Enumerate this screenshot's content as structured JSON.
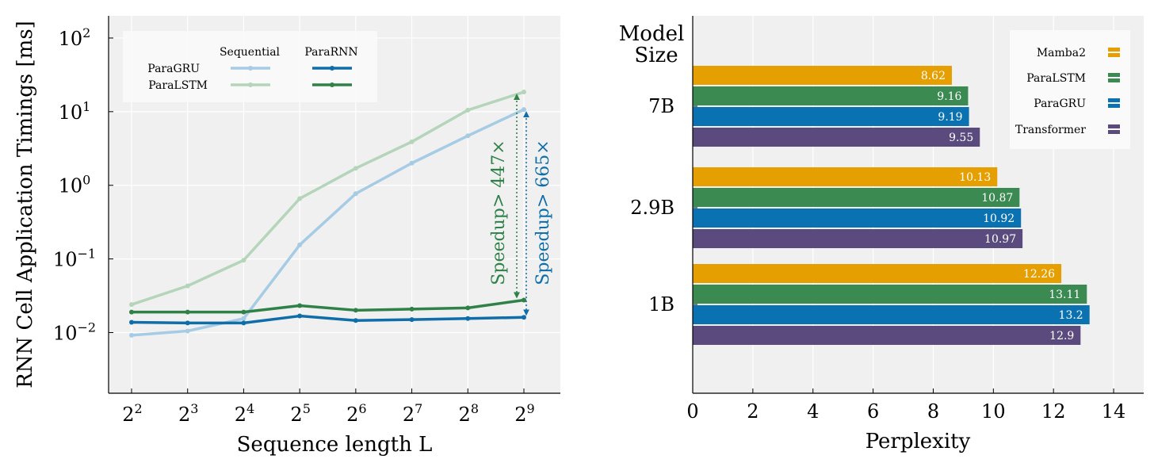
{
  "chart_data": [
    {
      "type": "line",
      "ylabel": "RNN Cell Application Timings [ms]",
      "xlabel": "Sequence length L",
      "x_ticks": [
        "2^2",
        "2^3",
        "2^4",
        "2^5",
        "2^6",
        "2^7",
        "2^8",
        "2^9"
      ],
      "x": [
        2,
        3,
        4,
        5,
        6,
        7,
        8,
        9
      ],
      "y_scale": "log",
      "ylim": [
        0.0015,
        200
      ],
      "y_ticks": [
        "10^2",
        "10^1",
        "10^0",
        "10^-1",
        "10^-2"
      ],
      "y_tick_values": [
        100,
        10,
        1,
        0.1,
        0.01
      ],
      "legend": {
        "position": "top-left",
        "column_headers": [
          "Sequential",
          "ParaRNN"
        ],
        "row_labels": [
          "ParaGRU",
          "ParaLSTM"
        ]
      },
      "series": [
        {
          "name": "ParaGRU Sequential",
          "color": "#a6cbe4",
          "values": [
            0.0092,
            0.0105,
            0.0155,
            0.155,
            0.77,
            2.0,
            4.7,
            10.7
          ]
        },
        {
          "name": "ParaLSTM Sequential",
          "color": "#b4d5b9",
          "values": [
            0.024,
            0.043,
            0.096,
            0.66,
            1.7,
            3.9,
            10.5,
            18.5
          ]
        },
        {
          "name": "ParaGRU ParaRNN",
          "color": "#0f6ea9",
          "values": [
            0.0138,
            0.0135,
            0.0135,
            0.0168,
            0.0146,
            0.015,
            0.0155,
            0.0161
          ]
        },
        {
          "name": "ParaLSTM ParaRNN",
          "color": "#2f8148",
          "values": [
            0.019,
            0.019,
            0.019,
            0.0232,
            0.0201,
            0.0208,
            0.0216,
            0.0276
          ]
        }
      ],
      "annotations": [
        {
          "text": "Speedup> 447×",
          "color": "#2f8148"
        },
        {
          "text": "Speedup> 665×",
          "color": "#0f6ea9"
        }
      ]
    },
    {
      "type": "bar",
      "orientation": "horizontal",
      "xlabel": "Perplexity",
      "ylabel": "Model Size",
      "xlim": [
        0,
        15
      ],
      "x_ticks": [
        0,
        2,
        4,
        6,
        8,
        10,
        12,
        14
      ],
      "categories": [
        "7B",
        "2.9B",
        "1B"
      ],
      "legend": {
        "position": "top-right"
      },
      "series": [
        {
          "name": "Mamba2",
          "color": "#e69f00",
          "values": [
            8.62,
            10.13,
            12.26
          ],
          "labels": [
            "8.62",
            "10.13",
            "12.26"
          ]
        },
        {
          "name": "ParaLSTM",
          "color": "#3a8a52",
          "values": [
            9.16,
            10.87,
            13.11
          ],
          "labels": [
            "9.16",
            "10.87",
            "13.11"
          ]
        },
        {
          "name": "ParaGRU",
          "color": "#0b72b1",
          "values": [
            9.19,
            10.92,
            13.2
          ],
          "labels": [
            "9.19",
            "10.92",
            "13.2"
          ]
        },
        {
          "name": "Transformer",
          "color": "#5a4a7e",
          "values": [
            9.55,
            10.97,
            12.9
          ],
          "labels": [
            "9.55",
            "10.97",
            "12.9"
          ]
        }
      ]
    }
  ]
}
